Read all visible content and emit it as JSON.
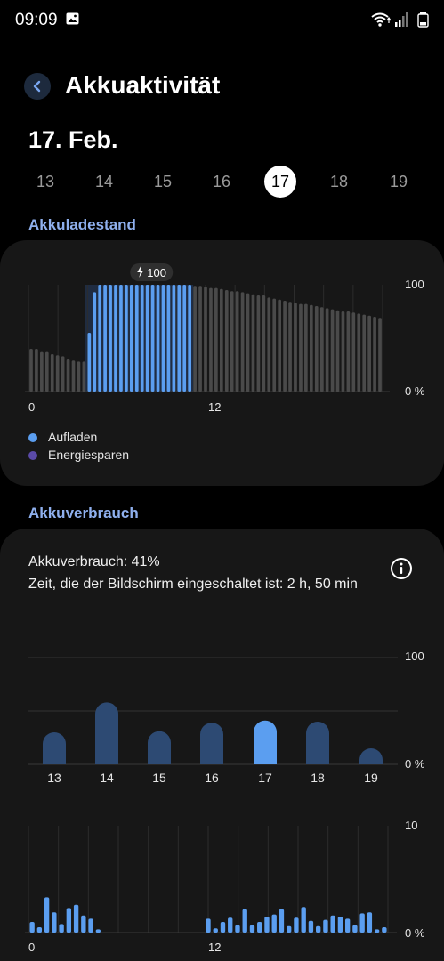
{
  "status_bar": {
    "time": "09:09"
  },
  "header": {
    "title": "Akkuaktivität",
    "date": "17. Feb."
  },
  "days": [
    {
      "label": "13",
      "selected": false
    },
    {
      "label": "14",
      "selected": false
    },
    {
      "label": "15",
      "selected": false
    },
    {
      "label": "16",
      "selected": false
    },
    {
      "label": "17",
      "selected": true
    },
    {
      "label": "18",
      "selected": false
    },
    {
      "label": "19",
      "selected": false
    }
  ],
  "battery_level": {
    "section_title": "Akkuladestand",
    "charge_badge": "100",
    "y_labels": {
      "max": "100",
      "min": "0 %"
    },
    "x_labels": [
      "0",
      "12"
    ],
    "legend": [
      {
        "label": "Aufladen",
        "color": "#5b9ef0"
      },
      {
        "label": "Energiesparen",
        "color": "#5a4aa8"
      }
    ]
  },
  "battery_usage": {
    "section_title": "Akkuverbrauch",
    "usage_text": "Akkuverbrauch: 41%",
    "screen_time_text": "Zeit, die der Bildschirm eingeschaltet ist: 2 h, 50 min",
    "daily_y_labels": {
      "max": "100",
      "min": "0 %"
    },
    "hourly_y_labels": {
      "max": "10",
      "min": "0 %"
    },
    "hourly_x_labels": [
      "0",
      "12"
    ]
  },
  "chart_data": [
    {
      "type": "bar",
      "x_unit": "hour",
      "ylim": [
        0,
        100
      ],
      "series": [
        {
          "values": [
            40,
            40,
            37,
            37,
            35,
            34,
            33,
            30,
            29,
            28,
            28,
            55,
            93,
            100,
            100,
            100,
            100,
            100,
            100,
            100,
            100,
            100,
            100,
            100,
            100,
            100,
            100,
            100,
            100,
            100,
            100,
            99,
            99,
            98,
            97,
            97,
            96,
            95,
            94,
            94,
            93,
            92,
            91,
            90,
            90,
            88,
            87,
            86,
            85,
            84,
            83,
            82,
            82,
            81,
            80,
            79,
            78,
            77,
            76,
            75,
            75,
            74,
            73,
            72,
            71,
            70,
            69
          ]
        }
      ],
      "charging_range": [
        11,
        30
      ]
    },
    {
      "type": "bar",
      "categories": [
        "13",
        "14",
        "15",
        "16",
        "17",
        "18",
        "19"
      ],
      "values": [
        30,
        58,
        31,
        39,
        41,
        40,
        15
      ],
      "ylim": [
        0,
        100
      ]
    },
    {
      "type": "bar",
      "ylim": [
        0,
        10
      ],
      "values": [
        1.0,
        0.5,
        3.3,
        1.9,
        0.8,
        2.3,
        2.6,
        1.6,
        1.3,
        0.3,
        0,
        0,
        0,
        0,
        0,
        0,
        0,
        0,
        0,
        0,
        0,
        0,
        0,
        0,
        1.3,
        0.4,
        1.0,
        1.4,
        0.7,
        2.2,
        0.7,
        1.0,
        1.5,
        1.7,
        2.2,
        0.6,
        1.4,
        2.4,
        1.1,
        0.6,
        1.2,
        1.6,
        1.5,
        1.3,
        0.7,
        1.8,
        1.9,
        0.3,
        0.5
      ]
    }
  ]
}
